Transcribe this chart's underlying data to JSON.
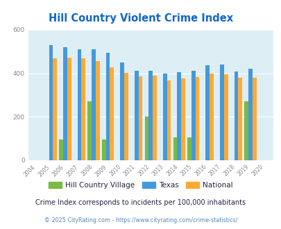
{
  "title": "Hill Country Violent Crime Index",
  "years": [
    2004,
    2005,
    2006,
    2007,
    2008,
    2009,
    2010,
    2011,
    2012,
    2013,
    2014,
    2015,
    2016,
    2017,
    2018,
    2019,
    2020
  ],
  "hill_country_village": [
    0,
    0,
    95,
    0,
    270,
    95,
    0,
    0,
    200,
    0,
    105,
    105,
    0,
    0,
    0,
    270,
    0
  ],
  "texas": [
    0,
    530,
    520,
    510,
    510,
    495,
    450,
    410,
    410,
    400,
    405,
    410,
    438,
    440,
    408,
    420,
    0
  ],
  "national": [
    0,
    470,
    473,
    468,
    457,
    429,
    403,
    387,
    390,
    367,
    375,
    383,
    400,
    396,
    380,
    379,
    0
  ],
  "bar_color_hcv": "#77bb44",
  "bar_color_texas": "#4499dd",
  "bar_color_national": "#ffaa33",
  "bg_color": "#ddeef5",
  "fig_bg": "#ffffff",
  "ylim": [
    0,
    600
  ],
  "subtitle": "Crime Index corresponds to incidents per 100,000 inhabitants",
  "footer": "© 2025 CityRating.com - https://www.cityrating.com/crime-statistics/",
  "title_color": "#1166cc",
  "subtitle_color": "#222244",
  "footer_color": "#5588bb",
  "legend_labels": [
    "Hill Country Village",
    "Texas",
    "National"
  ],
  "legend_text_color": "#222244"
}
